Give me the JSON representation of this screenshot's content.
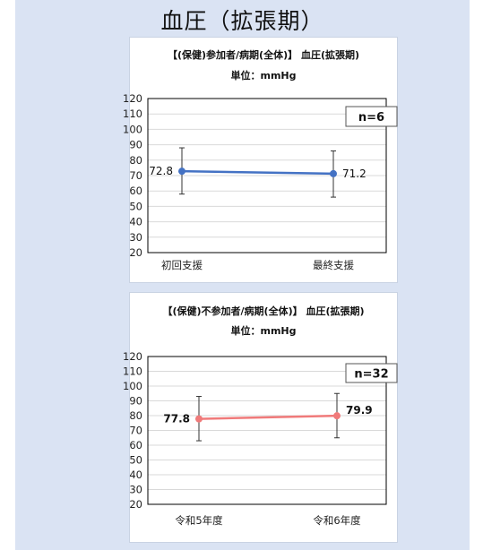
{
  "page": {
    "title": "血圧（拡張期）"
  },
  "chart_data": [
    {
      "type": "line",
      "title": "【(保健)参加者/病期(全体)】 血圧(拡張期)",
      "subtitle": "単位：mmHg",
      "categories": [
        "初回支援",
        "最終支援"
      ],
      "series": [
        {
          "values": [
            72.8,
            71.2
          ],
          "error_low": [
            58,
            56
          ],
          "error_high": [
            88,
            86
          ],
          "color": "#4472c4"
        }
      ],
      "data_labels": [
        "72.8",
        "71.2"
      ],
      "n_label": "n=6",
      "ylim": [
        20,
        120
      ],
      "yticks": [
        "120",
        "110",
        "100",
        "90",
        "80",
        "70",
        "60",
        "50",
        "40",
        "30",
        "20"
      ],
      "grid": true,
      "legend": "none"
    },
    {
      "type": "line",
      "title": "【(保健)不参加者/病期(全体)】 血圧(拡張期)",
      "subtitle": "単位：mmHg",
      "categories": [
        "令和5年度",
        "令和6年度"
      ],
      "series": [
        {
          "values": [
            77.8,
            79.9
          ],
          "error_low": [
            63,
            65
          ],
          "error_high": [
            93,
            95
          ],
          "color": "#f07a7a"
        }
      ],
      "data_labels": [
        "77.8",
        "79.9"
      ],
      "n_label": "n=32",
      "ylim": [
        20,
        120
      ],
      "yticks": [
        "120",
        "110",
        "100",
        "90",
        "80",
        "70",
        "60",
        "50",
        "40",
        "30",
        "20"
      ],
      "grid": true,
      "legend": "none"
    }
  ]
}
